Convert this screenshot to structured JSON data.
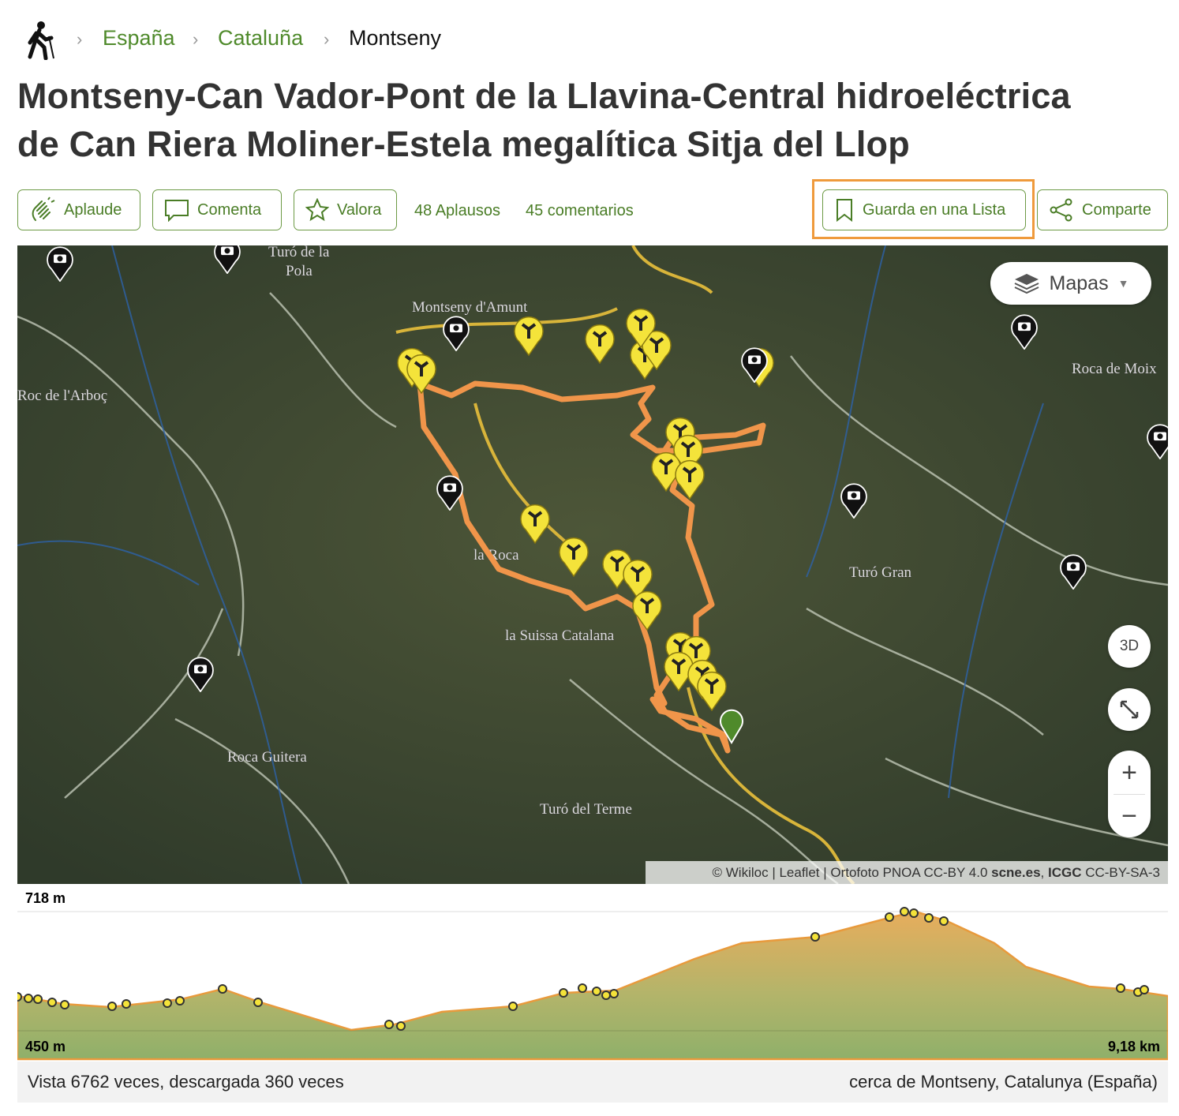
{
  "breadcrumb": {
    "items": [
      "España",
      "Cataluña",
      "Montseny"
    ]
  },
  "header": {
    "title_line1": "Montseny-Can Vador-Pont de la Llavina-Central hidroeléctrica",
    "title_line2": "de Can Riera Moliner-Estela megalítica Sitja del Llop"
  },
  "actions": {
    "applaud": "Aplaude",
    "comment": "Comenta",
    "rate": "Valora",
    "applause_count": "48 Aplausos",
    "comments_count": "45 comentarios",
    "save": "Guarda en una Lista",
    "share": "Comparte"
  },
  "map": {
    "layers": "Mapas",
    "view3d": "3D",
    "zoom_in": "+",
    "zoom_out": "−",
    "labels": [
      "Turó de la",
      "Pola",
      "Montseny d'Amunt",
      "Roc de l'Arboç",
      "Roca de Moix",
      "la Roca",
      "Turó Gran",
      "la Suissa Catalana",
      "Roca Guitera",
      "Turó del Terme"
    ],
    "attribution": {
      "a": "© Wikiloc | Leaflet | Ortofoto PNOA CC-BY 4.0 ",
      "b": "scne.es",
      "c": ", ",
      "d": "ICGC",
      "e": " CC-BY-SA-3"
    }
  },
  "elevation": {
    "max": "718 m",
    "min": "450 m",
    "distance": "9,18 km"
  },
  "footer": {
    "stats": "Vista 6762 veces, descargada 360 veces",
    "location": "cerca de Montseny, Catalunya (España)"
  }
}
